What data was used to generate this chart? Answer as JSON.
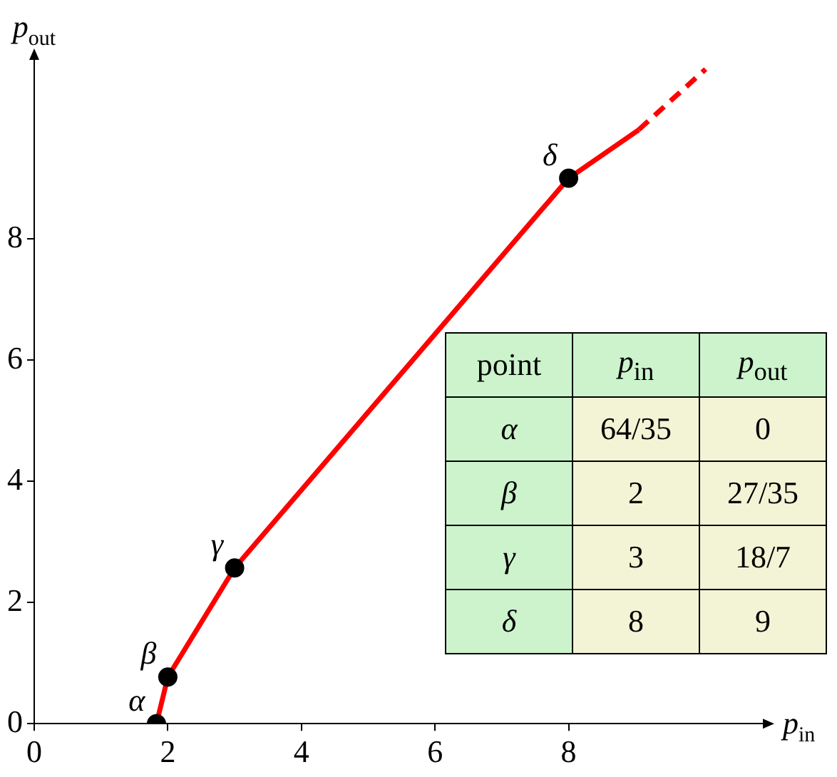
{
  "chart_data": {
    "type": "line",
    "xlabel": "p$_{in}$",
    "ylabel": "p$_{out}$",
    "xlim": [
      0,
      10.95
    ],
    "ylim": [
      0,
      11
    ],
    "xticks": [
      0,
      2,
      4,
      6,
      8
    ],
    "yticks": [
      0,
      2,
      4,
      6,
      8
    ],
    "grid": false,
    "legend": false,
    "series": [
      {
        "type": "line",
        "color": "#ff0000",
        "x": [
          1.83,
          2,
          3,
          8,
          9.05
        ],
        "values": [
          0,
          0.77,
          2.57,
          9,
          9.8
        ],
        "marker": "none",
        "line_style": "solid"
      },
      {
        "type": "line",
        "color": "#ff0000",
        "x": [
          9.05,
          10.05
        ],
        "values": [
          9.8,
          10.8
        ],
        "marker": "none",
        "line_style": "dashed"
      },
      {
        "type": "scatter",
        "color": "#000000",
        "x": [
          1.83,
          2,
          3,
          8
        ],
        "values": [
          0,
          0.77,
          2.57,
          9
        ],
        "marker": "circle"
      }
    ],
    "annotations": [
      {
        "text": "α",
        "x": 1.83,
        "y": 0
      },
      {
        "text": "β",
        "x": 2,
        "y": 0.77
      },
      {
        "text": "γ",
        "x": 3,
        "y": 2.57
      },
      {
        "text": "δ",
        "x": 8,
        "y": 9
      },
      "point",
      "p$_{in}$",
      "p$_{out}$",
      "α",
      "64/35",
      "0",
      "β",
      "2",
      "27/35",
      "γ",
      "3",
      "18/7",
      "δ",
      "8",
      "9"
    ]
  }
}
